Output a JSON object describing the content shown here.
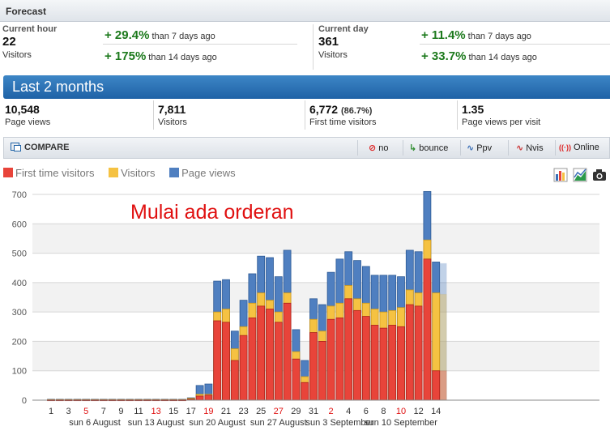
{
  "forecast": {
    "title": "Forecast",
    "current_hour": {
      "label": "Current hour",
      "value": "22",
      "sub": "Visitors",
      "changes": [
        {
          "pct": "+ 29.4%",
          "text": "than 7 days ago"
        },
        {
          "pct": "+ 175%",
          "text": "than 14 days ago"
        }
      ]
    },
    "current_day": {
      "label": "Current day",
      "value": "361",
      "sub": "Visitors",
      "changes": [
        {
          "pct": "+ 11.4%",
          "text": "than 7 days ago"
        },
        {
          "pct": "+ 33.7%",
          "text": "than 14 days ago"
        }
      ]
    }
  },
  "period": {
    "title": "Last 2 months"
  },
  "summary": [
    {
      "value": "10,548",
      "extra": "",
      "label": "Page views"
    },
    {
      "value": "7,811",
      "extra": "",
      "label": "Visitors"
    },
    {
      "value": "6,772",
      "extra": "(86.7%)",
      "label": "First time visitors"
    },
    {
      "value": "1.35",
      "extra": "",
      "label": "Page views per visit"
    }
  ],
  "compare": {
    "label": "COMPARE",
    "buttons": [
      {
        "icon": "⊘",
        "label": "no"
      },
      {
        "icon": "↳",
        "label": "bounce"
      },
      {
        "icon": "∿",
        "label": "Ppv"
      },
      {
        "icon": "∿",
        "label": "Nvis"
      },
      {
        "icon": "((·))",
        "label": "Online"
      }
    ]
  },
  "legend": [
    {
      "name": "First time visitors",
      "color": "#e8443a"
    },
    {
      "name": "Visitors",
      "color": "#f5c242"
    },
    {
      "name": "Page views",
      "color": "#4f7fc0"
    }
  ],
  "tools": [
    "bar-chart-icon",
    "area-chart-icon",
    "camera-icon"
  ],
  "annotation": "Mulai ada orderan",
  "chart_data": {
    "type": "bar",
    "stacked": "overlay",
    "ylim": [
      0,
      700
    ],
    "yticks": [
      0,
      100,
      200,
      300,
      400,
      500,
      600,
      700
    ],
    "grid": true,
    "categories": [
      "1",
      "2",
      "3",
      "4",
      "5",
      "6",
      "7",
      "8",
      "9",
      "10",
      "11",
      "12",
      "13",
      "14",
      "15",
      "16",
      "17",
      "18",
      "19",
      "20",
      "21",
      "22",
      "23",
      "24",
      "25",
      "26",
      "27",
      "28",
      "29",
      "30",
      "31",
      "1",
      "2",
      "3",
      "4",
      "5",
      "6",
      "7",
      "8",
      "9",
      "10",
      "11",
      "12",
      "13",
      "14"
    ],
    "x_tick_labels": [
      {
        "index": 0,
        "label": "1",
        "weekend": false
      },
      {
        "index": 2,
        "label": "3",
        "weekend": false
      },
      {
        "index": 4,
        "label": "5",
        "weekend": true
      },
      {
        "index": 6,
        "label": "7",
        "weekend": false
      },
      {
        "index": 8,
        "label": "9",
        "weekend": false
      },
      {
        "index": 10,
        "label": "11",
        "weekend": false
      },
      {
        "index": 12,
        "label": "13",
        "weekend": true
      },
      {
        "index": 14,
        "label": "15",
        "weekend": false
      },
      {
        "index": 16,
        "label": "17",
        "weekend": false
      },
      {
        "index": 18,
        "label": "19",
        "weekend": true
      },
      {
        "index": 20,
        "label": "21",
        "weekend": false
      },
      {
        "index": 22,
        "label": "23",
        "weekend": false
      },
      {
        "index": 24,
        "label": "25",
        "weekend": false
      },
      {
        "index": 26,
        "label": "27",
        "weekend": true
      },
      {
        "index": 28,
        "label": "29",
        "weekend": false
      },
      {
        "index": 30,
        "label": "31",
        "weekend": false
      },
      {
        "index": 32,
        "label": "2",
        "weekend": true
      },
      {
        "index": 34,
        "label": "4",
        "weekend": false
      },
      {
        "index": 36,
        "label": "6",
        "weekend": false
      },
      {
        "index": 38,
        "label": "8",
        "weekend": false
      },
      {
        "index": 40,
        "label": "10",
        "weekend": true
      },
      {
        "index": 42,
        "label": "12",
        "weekend": false
      },
      {
        "index": 44,
        "label": "14",
        "weekend": false
      }
    ],
    "week_labels": [
      {
        "index": 5,
        "label": "sun 6 August"
      },
      {
        "index": 12,
        "label": "sun 13 August"
      },
      {
        "index": 19,
        "label": "sun 20 August"
      },
      {
        "index": 26,
        "label": "sun 27 August"
      },
      {
        "index": 33,
        "label": "sun 3 September"
      },
      {
        "index": 40,
        "label": "sun 10 September"
      }
    ],
    "series": [
      {
        "name": "Page views",
        "color": "#4f7fc0",
        "values": [
          3,
          3,
          3,
          3,
          3,
          3,
          3,
          3,
          3,
          3,
          3,
          3,
          3,
          3,
          3,
          3,
          8,
          50,
          55,
          405,
          410,
          235,
          340,
          430,
          490,
          485,
          420,
          510,
          240,
          135,
          345,
          325,
          435,
          480,
          505,
          475,
          455,
          425,
          425,
          425,
          420,
          510,
          505,
          710,
          470
        ]
      },
      {
        "name": "Visitors",
        "color": "#f5c242",
        "values": [
          2,
          2,
          2,
          2,
          2,
          2,
          2,
          2,
          2,
          2,
          2,
          2,
          2,
          2,
          2,
          2,
          6,
          20,
          20,
          300,
          310,
          175,
          250,
          330,
          365,
          340,
          300,
          365,
          165,
          80,
          275,
          235,
          320,
          330,
          390,
          345,
          330,
          310,
          300,
          305,
          315,
          375,
          365,
          545,
          365
        ]
      },
      {
        "name": "First time visitors",
        "color": "#e8443a",
        "values": [
          1,
          1,
          1,
          1,
          1,
          1,
          1,
          1,
          1,
          1,
          1,
          1,
          1,
          1,
          1,
          1,
          3,
          14,
          17,
          270,
          265,
          135,
          220,
          280,
          320,
          310,
          265,
          330,
          140,
          60,
          230,
          200,
          275,
          280,
          345,
          305,
          285,
          255,
          245,
          255,
          250,
          325,
          320,
          480,
          100
        ]
      }
    ],
    "projection": {
      "index": 44,
      "values": {
        "Page views": 465,
        "Visitors": 360,
        "First time visitors": 100
      }
    }
  }
}
